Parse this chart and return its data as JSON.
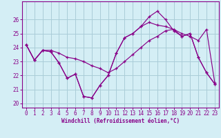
{
  "xlabel": "Windchill (Refroidissement éolien,°C)",
  "background_color": "#d4eef5",
  "grid_color": "#aaccd8",
  "line_color": "#880088",
  "x_hours": [
    0,
    1,
    2,
    3,
    4,
    5,
    6,
    7,
    8,
    9,
    10,
    11,
    12,
    13,
    14,
    15,
    16,
    17,
    18,
    19,
    20,
    21,
    22,
    23
  ],
  "line_spike": [
    24.2,
    23.1,
    23.8,
    23.7,
    22.9,
    21.8,
    22.1,
    20.5,
    20.4,
    21.3,
    22.0,
    23.6,
    24.7,
    25.0,
    25.5,
    26.2,
    26.6,
    26.0,
    25.2,
    24.8,
    25.0,
    23.3,
    22.2,
    21.4
  ],
  "line_flat": [
    24.2,
    23.1,
    23.8,
    23.8,
    23.6,
    23.3,
    23.2,
    23.0,
    22.7,
    22.5,
    22.2,
    22.5,
    23.0,
    23.5,
    24.0,
    24.5,
    24.8,
    25.2,
    25.3,
    25.0,
    24.8,
    24.5,
    25.3,
    21.5
  ],
  "line_mid": [
    24.2,
    23.1,
    23.8,
    23.7,
    22.9,
    21.8,
    22.1,
    20.5,
    20.4,
    21.3,
    22.0,
    23.6,
    24.7,
    25.0,
    25.5,
    25.8,
    25.6,
    25.5,
    25.3,
    24.8,
    25.0,
    23.3,
    22.2,
    21.4
  ],
  "ylim": [
    19.7,
    27.3
  ],
  "xlim": [
    -0.5,
    23.5
  ],
  "yticks": [
    20,
    21,
    22,
    23,
    24,
    25,
    26
  ],
  "xticks": [
    0,
    1,
    2,
    3,
    4,
    5,
    6,
    7,
    8,
    9,
    10,
    11,
    12,
    13,
    14,
    15,
    16,
    17,
    18,
    19,
    20,
    21,
    22,
    23
  ]
}
